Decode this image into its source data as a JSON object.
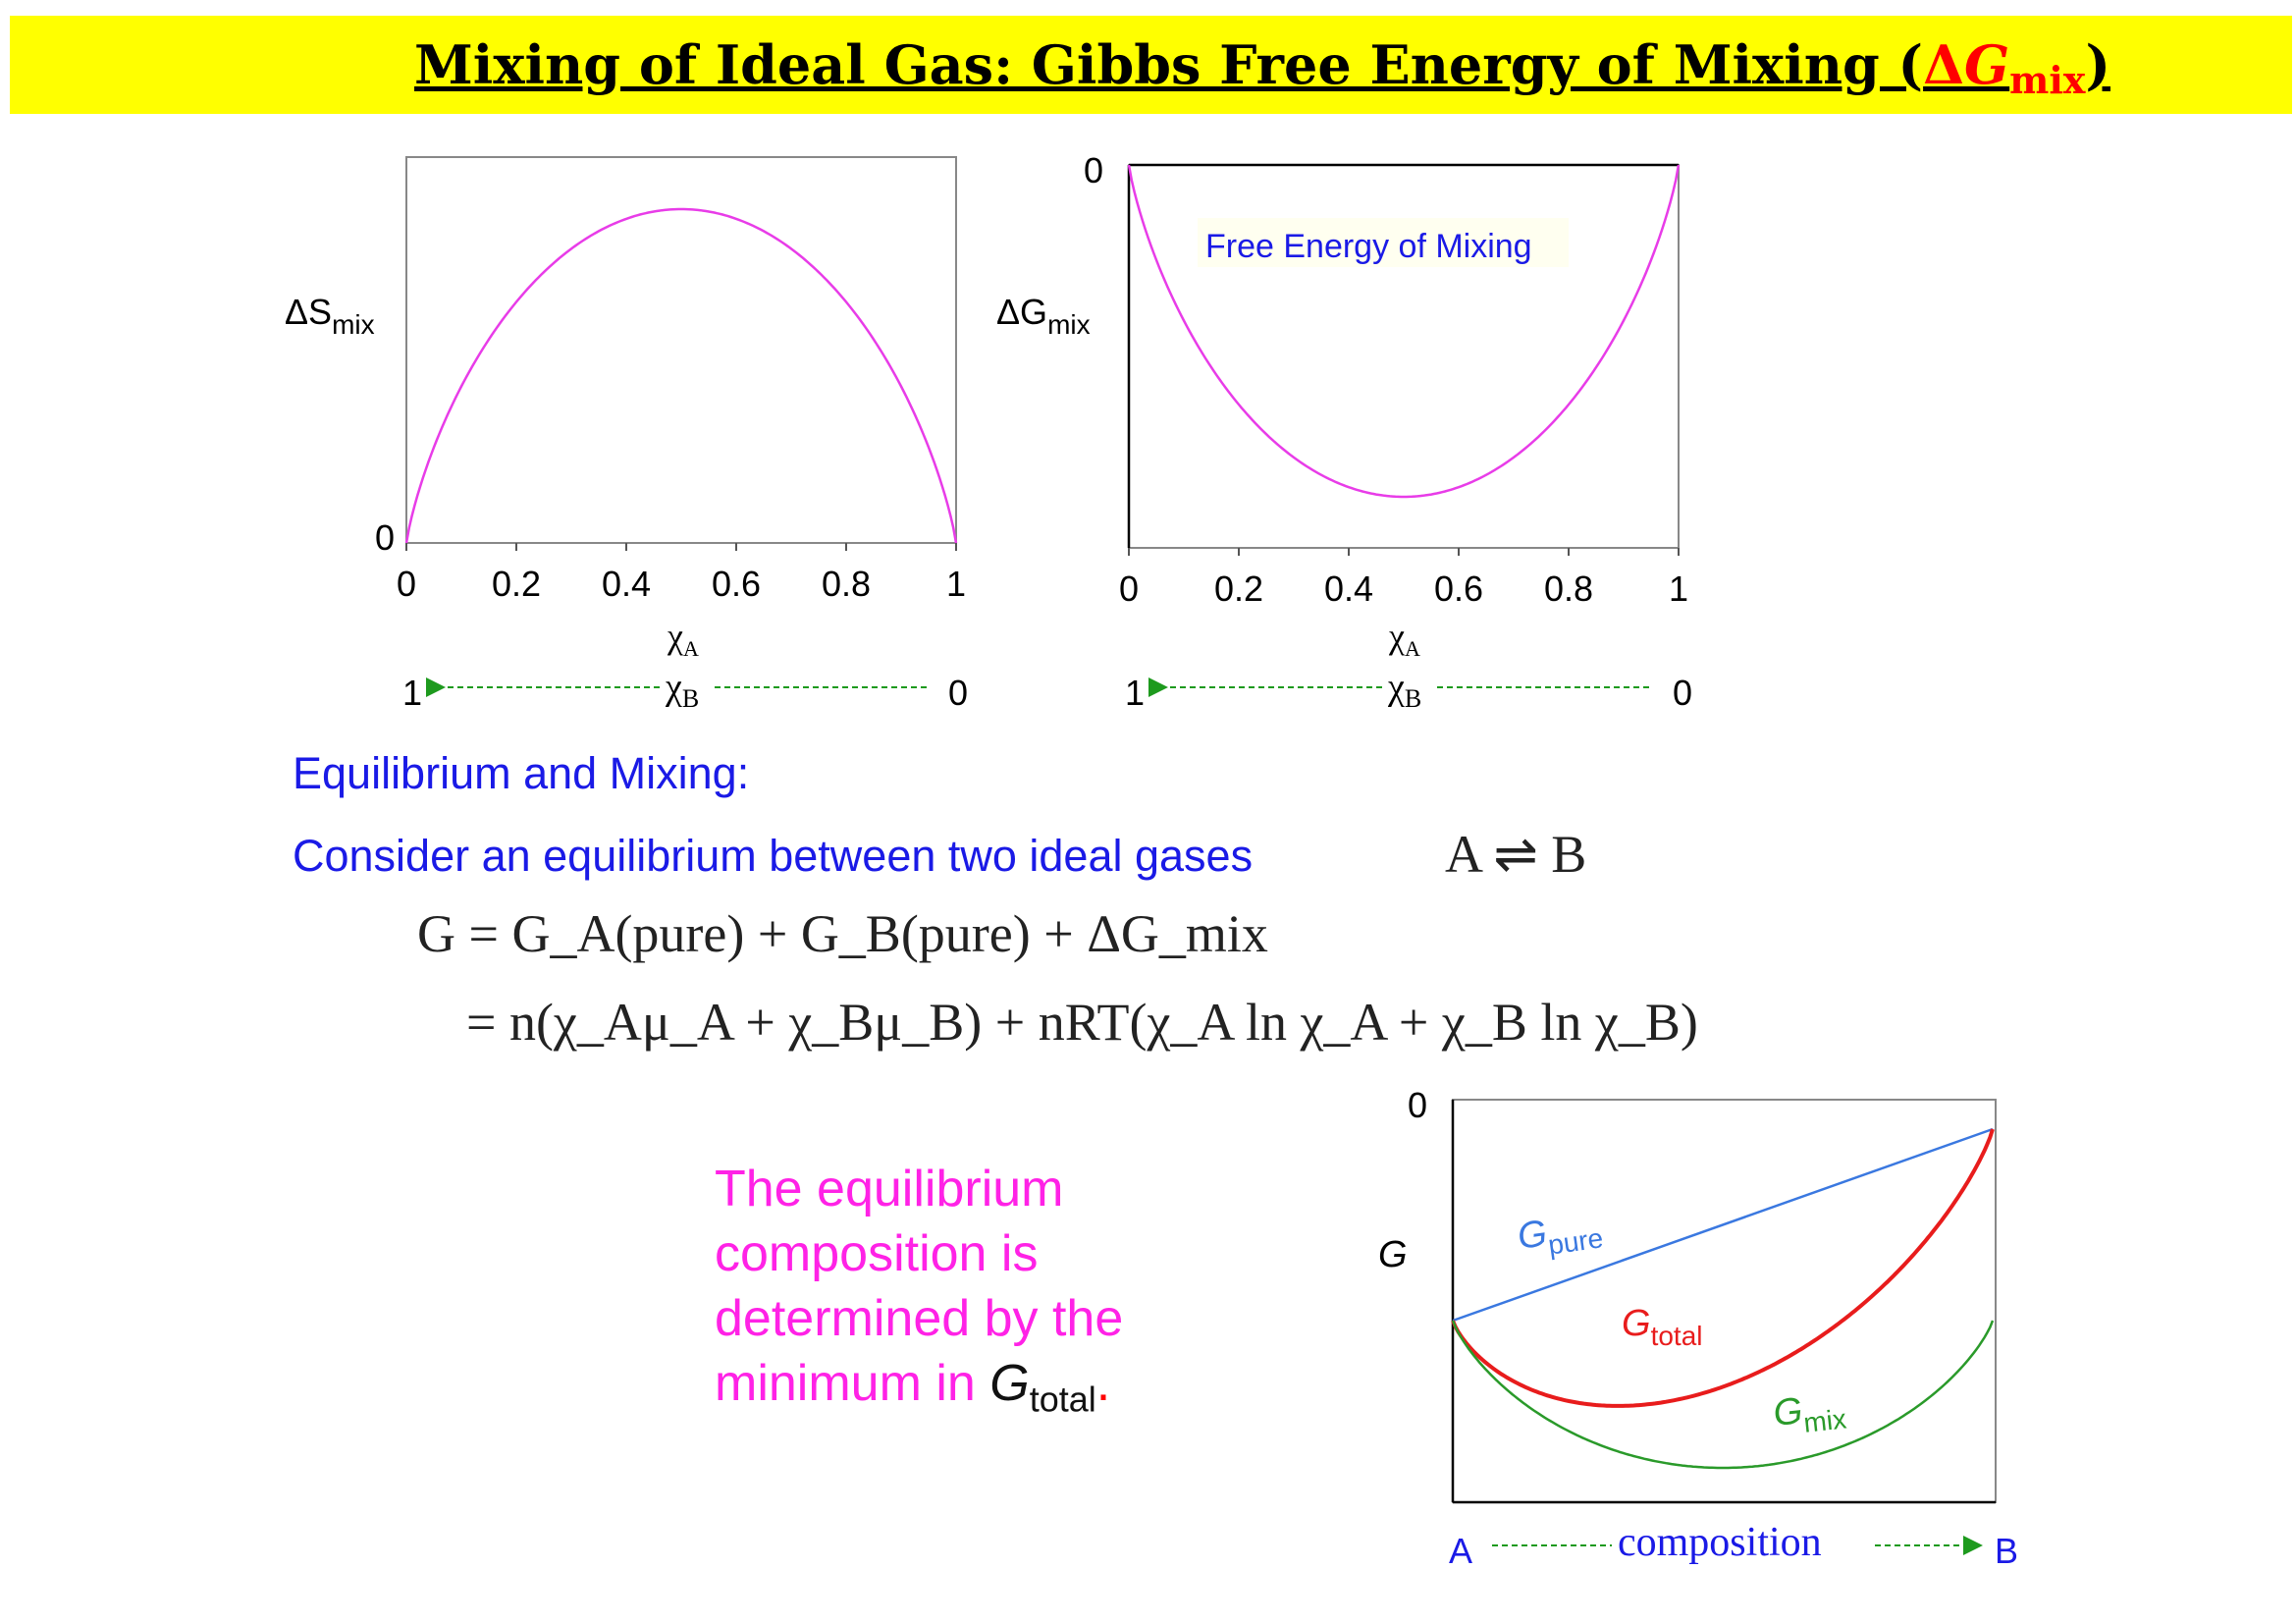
{
  "title": {
    "main": "Mixing of Ideal Gas: Gibbs Free Energy of Mixing (",
    "delta_symbol": "Δ",
    "g_symbol": "G",
    "subscript": "mix",
    "closing": ")"
  },
  "text": {
    "equilibrium_heading": "Equilibrium and Mixing:",
    "consider_line": "Consider an equilibrium between two ideal gases",
    "reaction": "A ⇌ B",
    "eq_line1": "G = G_A(pure) + G_B(pure) + ΔG_mix",
    "eq_line2": "= n(χ_Aμ_A + χ_Bμ_B) + nRT(χ_A ln χ_A + χ_B ln χ_B)",
    "conclusion_line1": "The equilibrium",
    "conclusion_line2": "composition is",
    "conclusion_line3": "determined by the",
    "conclusion_line4": "minimum in",
    "conclusion_g": "G",
    "conclusion_sub": "total",
    "conclusion_period": "."
  },
  "colors": {
    "title_bg": "#ffff00",
    "accent_red": "#ff0000",
    "heading_blue": "#1a1ae6",
    "curve_magenta": "#e83ce8",
    "g_pure_blue": "#3a78e0",
    "g_total_red": "#e81c1c",
    "g_mix_green": "#2a9a2a",
    "arrow_green": "#1e9a1e",
    "conclusion_magenta": "#ff22e6"
  },
  "chart_data": [
    {
      "type": "line",
      "ylabel": "ΔS",
      "ylabel_sub": "mix",
      "xlabel": "χ",
      "xlabel_sub": "A",
      "x_ticks": [
        "0",
        "0.2",
        "0.4",
        "0.6",
        "0.8",
        "1"
      ],
      "y_tick": "0",
      "xlim": [
        0,
        1
      ],
      "function": "-(x ln x + (1-x) ln(1-x))",
      "peak_at": 0.5,
      "series": [
        {
          "values_x": [
            0,
            0.05,
            0.1,
            0.2,
            0.3,
            0.4,
            0.5,
            0.6,
            0.7,
            0.8,
            0.9,
            0.95,
            1
          ],
          "values_y": [
            0,
            0.199,
            0.325,
            0.5,
            0.611,
            0.673,
            0.693,
            0.673,
            0.611,
            0.5,
            0.325,
            0.199,
            0
          ]
        }
      ],
      "secondary_axis": {
        "label": "χ",
        "label_sub": "B",
        "left_value": "1",
        "right_value": "0"
      }
    },
    {
      "type": "line",
      "ylabel": "ΔG",
      "ylabel_sub": "mix",
      "xlabel": "χ",
      "xlabel_sub": "A",
      "x_ticks": [
        "0",
        "0.2",
        "0.4",
        "0.6",
        "0.8",
        "1"
      ],
      "y_tick": "0",
      "xlim": [
        0,
        1
      ],
      "annotation": "Free Energy of Mixing",
      "function": "x ln x + (1-x) ln(1-x)",
      "min_at": 0.5,
      "series": [
        {
          "values_x": [
            0,
            0.05,
            0.1,
            0.2,
            0.3,
            0.4,
            0.5,
            0.6,
            0.7,
            0.8,
            0.9,
            0.95,
            1
          ],
          "values_y": [
            0,
            -0.199,
            -0.325,
            -0.5,
            -0.611,
            -0.673,
            -0.693,
            -0.673,
            -0.611,
            -0.5,
            -0.325,
            -0.199,
            0
          ]
        }
      ],
      "secondary_axis": {
        "label": "χ",
        "label_sub": "B",
        "left_value": "1",
        "right_value": "0"
      }
    },
    {
      "type": "line",
      "ylabel": "G",
      "y_tick": "0",
      "xlabel": "composition",
      "x_left_label": "A",
      "x_right_label": "B",
      "series": [
        {
          "name": "G",
          "name_sub": "pure",
          "shape": "straight line rising from A to B"
        },
        {
          "name": "G",
          "name_sub": "total",
          "shape": "convex curve, minimum near 0.35"
        },
        {
          "name": "G",
          "name_sub": "mix",
          "shape": "convex curve, minimum near 0.5"
        }
      ]
    }
  ]
}
